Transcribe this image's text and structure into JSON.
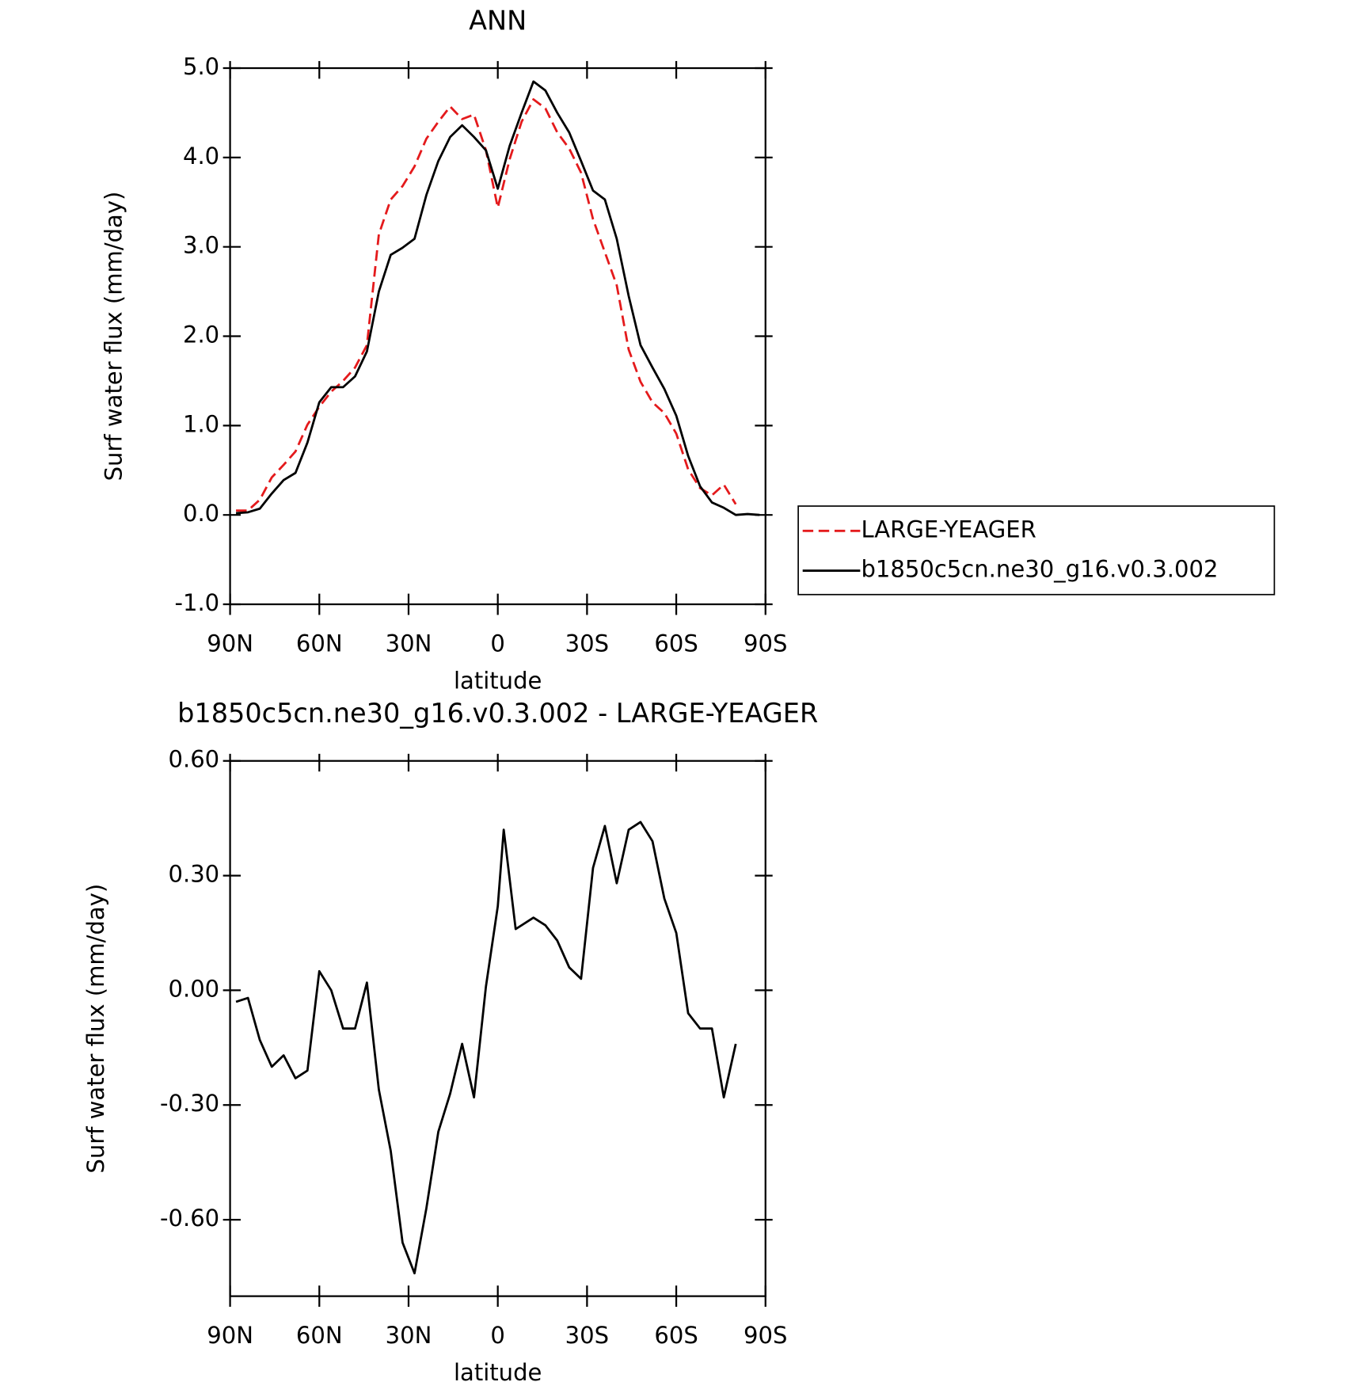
{
  "chart_data": [
    {
      "type": "line",
      "title": "ANN",
      "xlabel": "latitude",
      "ylabel": "Surf water flux (mm/day)",
      "x": [
        88,
        84,
        80,
        76,
        72,
        68,
        64,
        60,
        56,
        52,
        48,
        44,
        40,
        36,
        32,
        28,
        24,
        20,
        16,
        12,
        8,
        4,
        0,
        -4,
        -8,
        -12,
        -16,
        -20,
        -24,
        -28,
        -32,
        -36,
        -40,
        -44,
        -48,
        -52,
        -56,
        -60,
        -64,
        -68,
        -72,
        -76,
        -80,
        -84,
        -88
      ],
      "series": [
        {
          "name": "LARGE-YEAGER",
          "color": "#e41a1c",
          "dash": true,
          "values": [
            0.05,
            0.05,
            0.17,
            0.42,
            0.56,
            0.71,
            1.01,
            1.21,
            1.38,
            1.5,
            1.65,
            1.9,
            3.14,
            3.53,
            3.68,
            3.9,
            4.21,
            4.4,
            4.57,
            4.43,
            4.48,
            4.08,
            3.44,
            3.98,
            4.4,
            4.65,
            4.55,
            4.28,
            4.1,
            3.83,
            3.31,
            2.94,
            2.57,
            1.85,
            1.49,
            1.26,
            1.14,
            0.91,
            0.51,
            0.3,
            0.22,
            0.34,
            0.12,
            null,
            null
          ]
        },
        {
          "name": "b1850c5cn.ne30_g16.v0.3.002",
          "color": "#000000",
          "dash": false,
          "values": [
            0.02,
            0.03,
            0.07,
            0.24,
            0.39,
            0.47,
            0.81,
            1.26,
            1.43,
            1.43,
            1.55,
            1.83,
            2.5,
            2.91,
            2.99,
            3.09,
            3.58,
            3.96,
            4.23,
            4.36,
            4.23,
            4.08,
            3.65,
            4.13,
            4.5,
            4.85,
            4.75,
            4.5,
            4.28,
            3.96,
            3.63,
            3.53,
            3.09,
            2.45,
            1.9,
            1.65,
            1.41,
            1.11,
            0.66,
            0.32,
            0.14,
            0.08,
            0.0,
            0.01,
            0.0
          ]
        }
      ],
      "xlim": [
        90,
        -90
      ],
      "xticks": [
        {
          "value": 90,
          "label": "90N"
        },
        {
          "value": 60,
          "label": "60N"
        },
        {
          "value": 30,
          "label": "30N"
        },
        0,
        {
          "value": -30,
          "label": "30S"
        },
        {
          "value": -60,
          "label": "60S"
        },
        {
          "value": -90,
          "label": "90S"
        }
      ],
      "ylim": [
        -1,
        5
      ],
      "yticks": [
        {
          "value": 5,
          "label": "5.0"
        },
        {
          "value": 4,
          "label": "4.0"
        },
        {
          "value": 3,
          "label": "3.0"
        },
        {
          "value": 2,
          "label": "2.0"
        },
        {
          "value": 1,
          "label": "1.0"
        },
        {
          "value": 0,
          "label": "0.0"
        },
        {
          "value": -1,
          "label": "-1.0"
        }
      ],
      "legend": "outside right"
    },
    {
      "type": "line",
      "title": "b1850c5cn.ne30_g16.v0.3.002 - LARGE-YEAGER",
      "xlabel": "latitude",
      "ylabel": "Surf water flux (mm/day)",
      "x": [
        88,
        84,
        80,
        76,
        72,
        68,
        64,
        60,
        56,
        52,
        48,
        44,
        40,
        36,
        32,
        28,
        24,
        20,
        16,
        12,
        8,
        4,
        0,
        -2,
        -6,
        -12,
        -16,
        -20,
        -24,
        -28,
        -32,
        -36,
        -40,
        -44,
        -48,
        -52,
        -56,
        -60,
        -64,
        -68,
        -72,
        -76,
        -80
      ],
      "series": [
        {
          "color": "#000000",
          "dash": false,
          "values": [
            -0.03,
            -0.02,
            -0.13,
            -0.2,
            -0.17,
            -0.23,
            -0.21,
            0.05,
            0.0,
            -0.1,
            -0.1,
            0.02,
            -0.26,
            -0.42,
            -0.66,
            -0.74,
            -0.57,
            -0.37,
            -0.27,
            -0.14,
            -0.28,
            0.01,
            0.22,
            0.42,
            0.16,
            0.19,
            0.17,
            0.13,
            0.06,
            0.03,
            0.32,
            0.43,
            0.28,
            0.42,
            0.44,
            0.39,
            0.24,
            0.15,
            -0.06,
            -0.1,
            -0.1,
            -0.28,
            -0.14
          ]
        }
      ],
      "xlim": [
        90,
        -90
      ],
      "xticks": [
        {
          "value": 90,
          "label": "90N"
        },
        {
          "value": 60,
          "label": "60N"
        },
        {
          "value": 30,
          "label": "30N"
        },
        0,
        {
          "value": -30,
          "label": "30S"
        },
        {
          "value": -60,
          "label": "60S"
        },
        {
          "value": -90,
          "label": "90S"
        }
      ],
      "ylim": [
        -0.8,
        0.6
      ],
      "yticks": [
        {
          "value": 0.6,
          "label": "0.60"
        },
        {
          "value": 0.3,
          "label": "0.30"
        },
        {
          "value": 0,
          "label": "0.00"
        },
        {
          "value": -0.3,
          "label": "-0.30"
        },
        {
          "value": -0.6,
          "label": "-0.60"
        }
      ]
    }
  ]
}
